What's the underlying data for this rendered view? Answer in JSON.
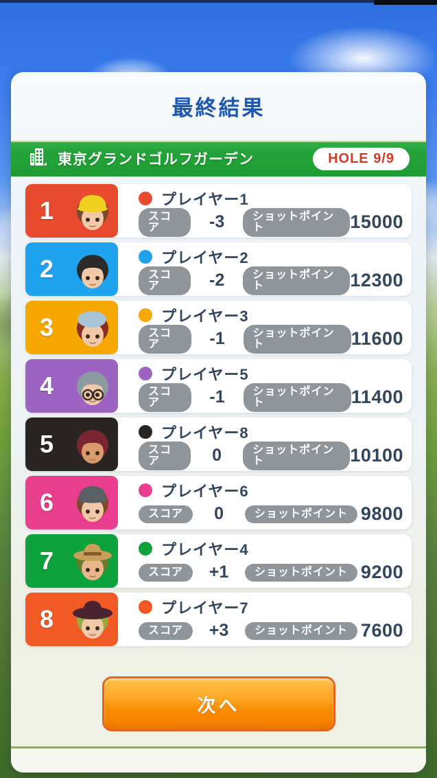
{
  "screen": {
    "title": "最終結果"
  },
  "course_bar": {
    "name": "東京グランドゴルフガーデン",
    "hole": "HOLE 9/9",
    "bar_color": "#23a33a",
    "hole_text_color": "#d23b2a"
  },
  "labels": {
    "score": "スコア",
    "shot_point": "ショットポイント"
  },
  "players": [
    {
      "rank": "1",
      "name": "プレイヤー1",
      "score": "-3",
      "points": "15000",
      "color": "#e84b2e",
      "avatar": {
        "skin": "#f2c9a8",
        "hair": "#7a4a2b",
        "hat": "visor",
        "hat_color": "#f0d021",
        "glasses": false
      }
    },
    {
      "rank": "2",
      "name": "プレイヤー2",
      "score": "-2",
      "points": "12300",
      "color": "#1fa3ef",
      "avatar": {
        "skin": "#f2c9a8",
        "hair": "#2b2b2b",
        "hat": "none",
        "hat_color": "",
        "glasses": false
      }
    },
    {
      "rank": "3",
      "name": "プレイヤー3",
      "score": "-1",
      "points": "11600",
      "color": "#f6a800",
      "avatar": {
        "skin": "#f2c9a8",
        "hair": "#8a2f1f",
        "hat": "beret",
        "hat_color": "#a9c4d6",
        "glasses": false
      }
    },
    {
      "rank": "4",
      "name": "プレイヤー5",
      "score": "-1",
      "points": "11400",
      "color": "#9c63c0",
      "avatar": {
        "skin": "#f2c9a8",
        "hair": "#8b9aa0",
        "hat": "none",
        "hat_color": "",
        "glasses": true
      }
    },
    {
      "rank": "5",
      "name": "プレイヤー8",
      "score": "0",
      "points": "10100",
      "color": "#2a2522",
      "avatar": {
        "skin": "#d99a6c",
        "hair": "#7a2630",
        "hat": "none",
        "hat_color": "",
        "glasses": false
      }
    },
    {
      "rank": "6",
      "name": "プレイヤー6",
      "score": "0",
      "points": "9800",
      "color": "#e93d8e",
      "avatar": {
        "skin": "#f2c9a8",
        "hair": "#7a4a2b",
        "hat": "cap",
        "hat_color": "#5a5f66",
        "glasses": false
      }
    },
    {
      "rank": "7",
      "name": "プレイヤー4",
      "score": "+1",
      "points": "9200",
      "color": "#0ea23c",
      "avatar": {
        "skin": "#e8b88a",
        "hair": "#6b7a2f",
        "hat": "cowboy",
        "hat_color": "#c9a05a",
        "glasses": false
      }
    },
    {
      "rank": "8",
      "name": "プレイヤー7",
      "score": "+3",
      "points": "7600",
      "color": "#f15a24",
      "avatar": {
        "skin": "#f2c9a8",
        "hair": "#9aa83f",
        "hat": "brim",
        "hat_color": "#4a2430",
        "glasses": false
      }
    }
  ],
  "footer": {
    "next": "次へ"
  }
}
